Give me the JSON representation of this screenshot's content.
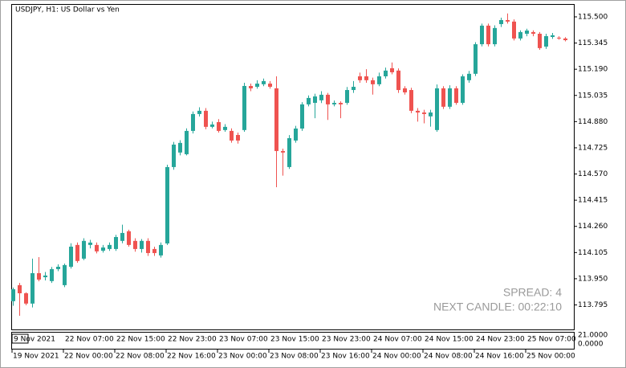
{
  "chart_data": {
    "type": "candlestick",
    "title": "USDJPY, H1:  US Dollar vs Yen",
    "up_color": "#26a69a",
    "down_color": "#ef5350",
    "ylim": [
      113.65,
      115.576
    ],
    "yticks": [
      {
        "value": 115.5,
        "label": "115.500"
      },
      115.345,
      {
        "value": 115.19,
        "label": "115.190"
      },
      115.035,
      {
        "value": 114.88,
        "label": "114.880"
      },
      114.725,
      {
        "value": 114.57,
        "label": "114.570"
      },
      114.415,
      {
        "value": 114.26,
        "label": "114.260"
      },
      114.105,
      {
        "value": 113.95,
        "label": "113.950"
      },
      113.795
    ],
    "categories": [
      "19 Nov 2021",
      null,
      null,
      null,
      null,
      null,
      null,
      null,
      "22 Nov 00:00",
      null,
      null,
      null,
      null,
      null,
      null,
      null,
      "22 Nov 08:00",
      null,
      null,
      null,
      null,
      null,
      null,
      null,
      "22 Nov 16:00",
      null,
      null,
      null,
      null,
      null,
      null,
      null,
      "23 Nov 00:00",
      null,
      null,
      null,
      null,
      null,
      null,
      null,
      "23 Nov 08:00",
      null,
      null,
      null,
      null,
      null,
      null,
      null,
      "23 Nov 16:00",
      null,
      null,
      null,
      null,
      null,
      null,
      null,
      "24 Nov 00:00",
      null,
      null,
      null,
      null,
      null,
      null,
      null,
      "24 Nov 08:00",
      null,
      null,
      null,
      null,
      null,
      null,
      null,
      "24 Nov 16:00",
      null,
      null,
      null,
      null,
      null,
      null,
      null,
      "25 Nov 00:00",
      null,
      null,
      null,
      null,
      null,
      null
    ],
    "ohlc": [
      [
        113.817,
        113.898,
        113.79,
        113.888
      ],
      [
        113.912,
        113.925,
        113.731,
        113.864
      ],
      [
        113.864,
        113.87,
        113.793,
        113.803
      ],
      [
        113.803,
        114.069,
        113.78,
        113.983
      ],
      [
        113.983,
        114.078,
        113.935,
        113.945
      ],
      [
        113.959,
        113.99,
        113.94,
        113.969
      ],
      [
        113.936,
        114.02,
        113.925,
        114.007
      ],
      [
        114.007,
        114.035,
        113.995,
        114.021
      ],
      [
        113.912,
        114.04,
        113.9,
        114.031
      ],
      [
        114.021,
        114.16,
        114.01,
        114.14
      ],
      [
        114.15,
        114.165,
        114.045,
        114.055
      ],
      [
        114.069,
        114.19,
        114.06,
        114.174
      ],
      [
        114.15,
        114.18,
        114.13,
        114.164
      ],
      [
        114.15,
        114.165,
        114.1,
        114.112
      ],
      [
        114.116,
        114.15,
        114.105,
        114.135
      ],
      [
        114.126,
        114.165,
        114.115,
        114.15
      ],
      [
        114.126,
        114.21,
        114.115,
        114.197
      ],
      [
        114.174,
        114.27,
        114.16,
        114.221
      ],
      [
        114.231,
        114.24,
        114.14,
        114.15
      ],
      [
        114.174,
        114.19,
        114.11,
        114.126
      ],
      [
        114.126,
        114.185,
        114.105,
        114.174
      ],
      [
        114.174,
        114.19,
        114.085,
        114.102
      ],
      [
        114.126,
        114.14,
        114.085,
        114.102
      ],
      [
        114.088,
        114.165,
        114.075,
        114.15
      ],
      [
        114.159,
        114.625,
        114.15,
        114.611
      ],
      [
        114.611,
        114.76,
        114.595,
        114.744
      ],
      [
        114.697,
        114.77,
        114.68,
        114.754
      ],
      [
        114.687,
        114.84,
        114.68,
        114.825
      ],
      [
        114.825,
        114.94,
        114.81,
        114.925
      ],
      [
        114.925,
        114.965,
        114.91,
        114.944
      ],
      [
        114.944,
        114.96,
        114.835,
        114.849
      ],
      [
        114.849,
        114.88,
        114.84,
        114.863
      ],
      [
        114.877,
        114.895,
        114.815,
        114.825
      ],
      [
        114.83,
        114.865,
        114.82,
        114.849
      ],
      [
        114.825,
        114.84,
        114.755,
        114.768
      ],
      [
        114.801,
        114.815,
        114.75,
        114.768
      ],
      [
        114.83,
        115.11,
        114.82,
        115.091
      ],
      [
        115.091,
        115.105,
        115.06,
        115.077
      ],
      [
        115.086,
        115.125,
        115.075,
        115.105
      ],
      [
        115.101,
        115.135,
        115.09,
        115.12
      ],
      [
        115.105,
        115.12,
        115.075,
        115.086
      ],
      [
        115.077,
        115.148,
        114.492,
        114.706
      ],
      [
        114.706,
        114.72,
        114.56,
        114.697
      ],
      [
        114.611,
        114.8,
        114.6,
        114.782
      ],
      [
        114.768,
        114.855,
        114.755,
        114.839
      ],
      [
        114.839,
        114.995,
        114.825,
        114.982
      ],
      [
        114.982,
        115.035,
        114.97,
        115.02
      ],
      [
        114.991,
        115.045,
        114.9,
        115.029
      ],
      [
        115.006,
        115.06,
        114.99,
        115.039
      ],
      [
        115.039,
        115.05,
        114.89,
        114.982
      ],
      [
        114.982,
        115.005,
        114.97,
        114.991
      ],
      [
        114.991,
        115.0,
        114.9,
        114.982
      ],
      [
        114.991,
        115.085,
        114.98,
        115.067
      ],
      [
        115.067,
        115.12,
        115.05,
        115.086
      ],
      [
        115.148,
        115.17,
        115.11,
        115.125
      ],
      [
        115.148,
        115.19,
        115.11,
        115.125
      ],
      [
        115.125,
        115.14,
        115.04,
        115.101
      ],
      [
        115.101,
        115.17,
        115.09,
        115.148
      ],
      [
        115.148,
        115.2,
        115.135,
        115.182
      ],
      [
        115.196,
        115.23,
        115.16,
        115.172
      ],
      [
        115.182,
        115.195,
        115.05,
        115.067
      ],
      [
        115.077,
        115.09,
        115.04,
        115.053
      ],
      [
        115.067,
        115.08,
        114.93,
        114.944
      ],
      [
        114.944,
        114.96,
        114.88,
        114.934
      ],
      [
        114.934,
        114.95,
        114.87,
        114.925
      ],
      [
        114.911,
        114.95,
        114.85,
        114.934
      ],
      [
        114.83,
        115.1,
        114.82,
        115.077
      ],
      [
        115.077,
        115.09,
        114.955,
        114.968
      ],
      [
        114.968,
        115.095,
        114.955,
        115.077
      ],
      [
        115.077,
        115.09,
        114.98,
        114.991
      ],
      [
        114.991,
        115.16,
        114.98,
        115.148
      ],
      [
        115.125,
        115.18,
        115.11,
        115.163
      ],
      [
        115.163,
        115.35,
        115.15,
        115.338
      ],
      [
        115.338,
        115.46,
        115.325,
        115.448
      ],
      [
        115.448,
        115.46,
        115.325,
        115.338
      ],
      [
        115.338,
        115.45,
        115.325,
        115.434
      ],
      [
        115.457,
        115.495,
        115.44,
        115.481
      ],
      [
        115.481,
        115.52,
        115.46,
        115.472
      ],
      [
        115.472,
        115.485,
        115.36,
        115.372
      ],
      [
        115.372,
        115.42,
        115.36,
        115.41
      ],
      [
        115.4,
        115.43,
        115.385,
        115.419
      ],
      [
        115.41,
        115.42,
        115.385,
        115.4
      ],
      [
        115.4,
        115.41,
        115.305,
        115.315
      ],
      [
        115.324,
        115.4,
        115.31,
        115.386
      ],
      [
        115.381,
        115.405,
        115.37,
        115.391
      ],
      [
        115.377,
        115.385,
        115.365,
        115.372
      ],
      [
        115.372,
        115.38,
        115.355,
        115.362
      ]
    ],
    "annotations": [
      "SPREAD: 4",
      "NEXT CANDLE: 00:22:10"
    ],
    "subwindow": {
      "ylim": [
        0,
        21
      ],
      "yticks": [
        {
          "value": 21,
          "label": "21.0000"
        },
        {
          "value": 0,
          "label": "0.0000"
        }
      ],
      "time_labels": [
        "9 Nov 2021",
        "22 Nov 07:00",
        "22 Nov 15:00",
        "22 Nov 23:00",
        "23 Nov 07:00",
        "23 Nov 15:00",
        "23 Nov 23:00",
        "24 Nov 07:00",
        "24 Nov 15:00",
        "24 Nov 23:00",
        "25 Nov 07:00"
      ]
    }
  }
}
